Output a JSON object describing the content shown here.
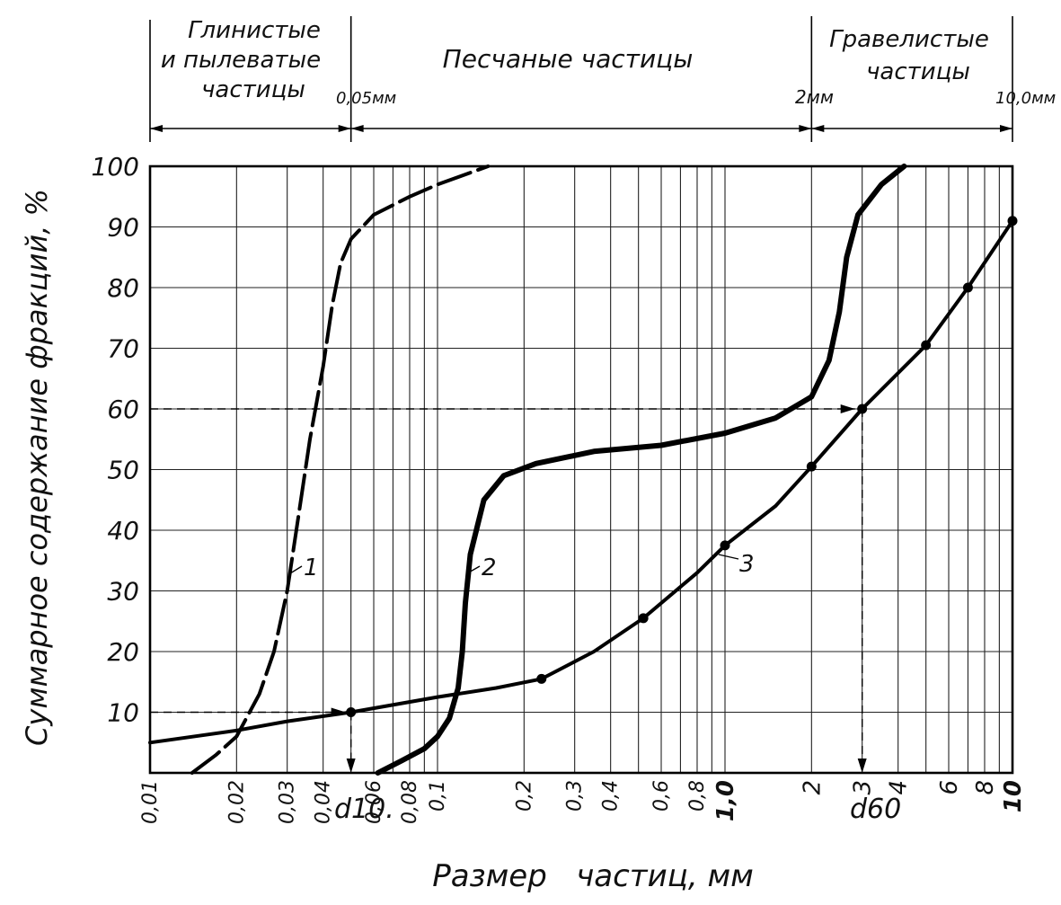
{
  "chart_data": {
    "type": "line",
    "x_scale": "log",
    "xlim": [
      0.01,
      10
    ],
    "ylim": [
      0,
      100
    ],
    "xlabel": "Размер   частиц, мм",
    "ylabel": "Суммарное содержание фракций, %",
    "grid": true,
    "legend": "labels on curves",
    "y_ticks": [
      "100",
      "90",
      "80",
      "70",
      "60",
      "50",
      "40",
      "30",
      "20",
      "10"
    ],
    "y_tick_values": [
      100,
      90,
      80,
      70,
      60,
      50,
      40,
      30,
      20,
      10
    ],
    "x_ticks": [
      "0,01",
      "0,02",
      "0,03",
      "0,04",
      "0,06",
      "0,08",
      "0,1",
      "0,2",
      "0,3",
      "0,4",
      "0,6",
      "0,8",
      "1,0",
      "2",
      "3",
      "4",
      "6",
      "8",
      "10"
    ],
    "x_tick_values": [
      0.01,
      0.02,
      0.03,
      0.04,
      0.06,
      0.08,
      0.1,
      0.2,
      0.3,
      0.4,
      0.6,
      0.8,
      1.0,
      2,
      3,
      4,
      6,
      8,
      10
    ],
    "zones": [
      {
        "label": "Глинистые и пылеватые частицы",
        "from": 0.01,
        "to": 0.05
      },
      {
        "label": "Песчаные частицы",
        "from": 0.05,
        "to": 2
      },
      {
        "label": "Гравелистые частицы",
        "from": 2,
        "to": 10
      }
    ],
    "zone_text": {
      "clay_line1": "Глинистые",
      "clay_line2": "и пылеватые",
      "clay_line3": "частицы",
      "sand": "Песчаные   частицы",
      "gravel_line1": "Гравелистые",
      "gravel_line2": "частицы"
    },
    "boundaries": [
      {
        "label": "0,05мм",
        "x": 0.05
      },
      {
        "label": "2мм",
        "x": 2
      },
      {
        "label": "10,0мм",
        "x": 10
      }
    ],
    "series": [
      {
        "name": "1",
        "style": "dashed",
        "points": [
          [
            0.014,
            0
          ],
          [
            0.017,
            3
          ],
          [
            0.02,
            6
          ],
          [
            0.024,
            13
          ],
          [
            0.027,
            20
          ],
          [
            0.03,
            30
          ],
          [
            0.033,
            43
          ],
          [
            0.036,
            55
          ],
          [
            0.04,
            67
          ],
          [
            0.043,
            77
          ],
          [
            0.046,
            84
          ],
          [
            0.05,
            88
          ],
          [
            0.06,
            92
          ],
          [
            0.08,
            95
          ],
          [
            0.1,
            97
          ],
          [
            0.15,
            100
          ]
        ]
      },
      {
        "name": "2",
        "style": "solid-thick",
        "points": [
          [
            0.062,
            0
          ],
          [
            0.075,
            2
          ],
          [
            0.09,
            4
          ],
          [
            0.1,
            6
          ],
          [
            0.11,
            9
          ],
          [
            0.118,
            14
          ],
          [
            0.122,
            20
          ],
          [
            0.125,
            28
          ],
          [
            0.13,
            36
          ],
          [
            0.145,
            45
          ],
          [
            0.17,
            49
          ],
          [
            0.22,
            51
          ],
          [
            0.35,
            53
          ],
          [
            0.6,
            54
          ],
          [
            1.0,
            56
          ],
          [
            1.5,
            58.5
          ],
          [
            2.0,
            62
          ],
          [
            2.3,
            68
          ],
          [
            2.5,
            76
          ],
          [
            2.65,
            85
          ],
          [
            2.9,
            92
          ],
          [
            3.5,
            97
          ],
          [
            4.2,
            100
          ]
        ]
      },
      {
        "name": "3",
        "style": "solid-markers",
        "points": [
          [
            0.01,
            5
          ],
          [
            0.02,
            7
          ],
          [
            0.03,
            8.5
          ],
          [
            0.05,
            10
          ],
          [
            0.1,
            12.5
          ],
          [
            0.16,
            14
          ],
          [
            0.23,
            15.5
          ],
          [
            0.35,
            20
          ],
          [
            0.52,
            25.5
          ],
          [
            0.8,
            33
          ],
          [
            1.0,
            37.5
          ],
          [
            1.5,
            44
          ],
          [
            2.0,
            50.5
          ],
          [
            3.0,
            60
          ],
          [
            5.0,
            70.5
          ],
          [
            7.0,
            80
          ],
          [
            10.0,
            91
          ]
        ],
        "markers": [
          [
            0.05,
            10
          ],
          [
            0.23,
            15.5
          ],
          [
            0.52,
            25.5
          ],
          [
            1.0,
            37.5
          ],
          [
            2.0,
            50.5
          ],
          [
            3.0,
            60
          ],
          [
            5.0,
            70.5
          ],
          [
            7.0,
            80
          ],
          [
            10.0,
            91
          ]
        ]
      }
    ],
    "annotations": [
      {
        "label": "d10.",
        "x": 0.05,
        "y": 10
      },
      {
        "label": "d60",
        "x": 3.0,
        "y": 60
      }
    ]
  },
  "ui": {
    "page_bg": "#ffffff",
    "ink": "#000000"
  }
}
